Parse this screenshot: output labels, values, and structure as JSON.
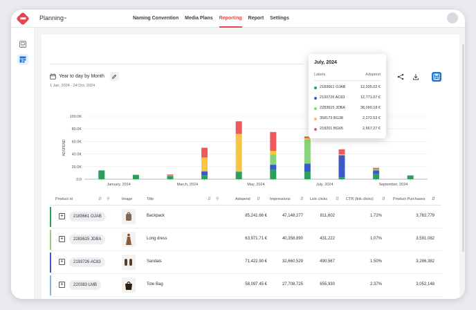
{
  "header": {
    "workspace": "Planning",
    "nav": [
      {
        "label": "Naming Convention",
        "active": false
      },
      {
        "label": "Media Plans",
        "active": false
      },
      {
        "label": "Reporting",
        "active": true
      },
      {
        "label": "Report",
        "active": false
      },
      {
        "label": "Settings",
        "active": false
      }
    ],
    "accent": "#e4474f"
  },
  "sidebar": {
    "items": [
      {
        "icon": "gallery-icon",
        "active": false
      },
      {
        "icon": "dashboard-icon",
        "active": true
      }
    ]
  },
  "report": {
    "range_label": "Year to day by Month",
    "date_range": "1 Jan, 2024 - 24 Oct, 2024"
  },
  "chart_data": {
    "type": "bar",
    "stacked": true,
    "ylabel": "ADSPEND",
    "y_ticks": [
      "0.0",
      "20.0K",
      "40.0K",
      "60.0K",
      "80.0K",
      "100.0K"
    ],
    "ylim": [
      0,
      100000
    ],
    "x_tick_labels": [
      "January, 2024",
      "March, 2024",
      "May, 2024",
      "July, 2024",
      "September, 2024"
    ],
    "grid": true,
    "series": [
      {
        "name": "2183661 OJAB",
        "color": "#2e9e5c"
      },
      {
        "name": "2193726 AC83",
        "color": "#3a5bc7"
      },
      {
        "name": "2283615 JDBA",
        "color": "#8bd37a"
      },
      {
        "name": "358173 BG38",
        "color": "#f7c544"
      },
      {
        "name": "218201 BG65",
        "color": "#ec5a5e"
      }
    ],
    "bars": [
      {
        "values": [
          14000,
          0,
          0,
          0,
          0
        ]
      },
      {
        "values": [
          7000,
          0,
          0,
          0,
          0
        ]
      },
      {
        "values": [
          5000,
          0,
          1000,
          0,
          1500
        ]
      },
      {
        "values": [
          6500,
          6000,
          0,
          22000,
          15500
        ]
      },
      {
        "values": [
          12000,
          0,
          0,
          60000,
          20000
        ]
      },
      {
        "values": [
          15000,
          8000,
          16000,
          6000,
          30000
        ]
      },
      {
        "values": [
          12035.02,
          12771.07,
          38090.18,
          2272.53,
          2667.27
        ]
      },
      {
        "values": [
          3000,
          35000,
          0,
          1500,
          8000
        ]
      },
      {
        "values": [
          8000,
          6000,
          2000,
          0,
          2000
        ]
      },
      {
        "values": [
          6000,
          0,
          0,
          0,
          0
        ]
      }
    ]
  },
  "tooltip": {
    "title": "July, 2024",
    "col_labels": "Labels",
    "col_adspend": "Adspend",
    "rows": [
      {
        "label": "2183661 OJAB",
        "value": "12,035.02 €",
        "color": "#2e9e5c"
      },
      {
        "label": "2193726 AC83",
        "value": "12,771.07 €",
        "color": "#3a5bc7"
      },
      {
        "label": "2283615 JDBA",
        "value": "38,090.18 €",
        "color": "#8bd37a"
      },
      {
        "label": "358173 BG38",
        "value": "2,272.53 €",
        "color": "#f7c544"
      },
      {
        "label": "218201 BG65",
        "value": "2,667.27 €",
        "color": "#ec5a5e"
      }
    ]
  },
  "table": {
    "columns": {
      "product_id": "Product id",
      "image": "Image",
      "title": "Title",
      "adspend": "Adspend",
      "impressions": "Impressions",
      "link_clicks": "Link clicks",
      "ctr": "CTR (link clicks)",
      "purchases": "Product Purchases"
    },
    "rows": [
      {
        "product_id": "2183661 OJAB",
        "title": "Backpack",
        "adspend": "85,241.66 €",
        "impressions": "47,148,277",
        "link_clicks": "811,602",
        "ctr": "1.72%",
        "purchases": "3,782,779",
        "bar_color": "#2e9e5c"
      },
      {
        "product_id": "2283615 JDBA",
        "title": "Long dress",
        "adspend": "63,971.71 €",
        "impressions": "40,358,890",
        "link_clicks": "431,222",
        "ctr": "1.07%",
        "purchases": "3,591,082",
        "bar_color": "#8bd37a"
      },
      {
        "product_id": "2193726 AC83",
        "title": "Sandals",
        "adspend": "71,422.90 €",
        "impressions": "32,660,529",
        "link_clicks": "490,567",
        "ctr": "1.50%",
        "purchases": "3,286,382",
        "bar_color": "#3a5bc7"
      },
      {
        "product_id": "220383 LMB",
        "title": "Tote Bag",
        "adspend": "58,097.45 €",
        "impressions": "27,708,725",
        "link_clicks": "655,930",
        "ctr": "2.37%",
        "purchases": "3,052,148",
        "bar_color": "#7fb6e8"
      }
    ]
  }
}
